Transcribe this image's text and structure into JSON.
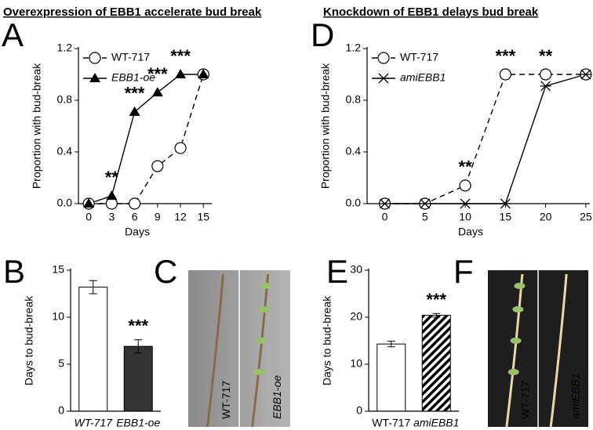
{
  "chart_data": [
    {
      "type": "line",
      "panel": "A",
      "title": "Overexpression of EBB1 accelerate bud break",
      "x_label": "Days",
      "y_label": "Proportion with bud-break",
      "x": [
        0,
        3,
        6,
        9,
        12,
        15
      ],
      "xlim": [
        -1.35,
        16.1
      ],
      "xticks": [
        0,
        3,
        6,
        9,
        12,
        15
      ],
      "ylim": [
        0,
        1.2
      ],
      "yticks": [
        {
          "value": 0,
          "label": "0.0"
        },
        {
          "value": 0.4,
          "label": "0.4"
        },
        {
          "value": 0.8,
          "label": "0.8"
        },
        {
          "value": 1.2,
          "label": "1.2"
        }
      ],
      "legend": "upper left",
      "series": [
        {
          "name": "WT-717",
          "color": "#000000",
          "dashed": true,
          "marker": "circle",
          "values": [
            0,
            0,
            0,
            0.29,
            0.43,
            1.0
          ]
        },
        {
          "name": "EBB1-oe",
          "color": "#000000",
          "dashed": false,
          "marker": "triangle",
          "values": [
            0,
            0.06,
            0.71,
            0.86,
            1.0,
            1.0
          ]
        }
      ],
      "significance": [
        null,
        "**",
        "***",
        "***",
        "***",
        null
      ]
    },
    {
      "type": "line",
      "panel": "D",
      "title": "Knockdown of EBB1 delays bud break",
      "x_label": "Days",
      "y_label": "Proportion with bud-break",
      "x": [
        0,
        5,
        10,
        15,
        20,
        25
      ],
      "xlim": [
        -2.2,
        25.5
      ],
      "xticks": [
        0,
        5,
        10,
        15,
        20,
        25
      ],
      "ylim": [
        0,
        1.2
      ],
      "yticks": [
        {
          "value": 0,
          "label": "0.0"
        },
        {
          "value": 0.4,
          "label": "0.4"
        },
        {
          "value": 0.8,
          "label": "0.8"
        },
        {
          "value": 1.2,
          "label": "1.2"
        }
      ],
      "legend": "upper left",
      "series": [
        {
          "name": "WT-717",
          "color": "#000000",
          "dashed": true,
          "marker": "circle",
          "values": [
            0,
            0,
            0.14,
            1.0,
            1.0,
            1.0
          ]
        },
        {
          "name": "amiEBB1",
          "color": "#000000",
          "dashed": false,
          "marker": "x",
          "values": [
            0,
            0,
            0,
            0,
            0.91,
            1.0
          ]
        }
      ],
      "significance": [
        null,
        null,
        "**",
        "***",
        "**",
        null
      ]
    },
    {
      "type": "bar",
      "panel": "B",
      "y_label": "Days to bud-break",
      "categories": [
        "WT-717",
        "EBB1-oe"
      ],
      "values": [
        13.2,
        6.9
      ],
      "errors": [
        0.7,
        0.7
      ],
      "colors": [
        "#ffffff",
        "#333333"
      ],
      "hatch": [
        false,
        false
      ],
      "ylim": [
        0,
        15
      ],
      "yticks": [
        0,
        5,
        10,
        15
      ],
      "significance": [
        null,
        "***"
      ]
    },
    {
      "type": "bar",
      "panel": "E",
      "y_label": "Days to bud-break",
      "categories": [
        "WT-717",
        "amiEBB1"
      ],
      "values": [
        14.3,
        20.4
      ],
      "errors": [
        0.6,
        0.4
      ],
      "colors": [
        "#ffffff",
        "#ffffff"
      ],
      "hatch": [
        false,
        true
      ],
      "ylim": [
        0,
        30
      ],
      "yticks": [
        0,
        10,
        20,
        30
      ],
      "significance": [
        null,
        "***"
      ]
    }
  ],
  "photos": [
    {
      "panel": "C",
      "labels": [
        "WT-717",
        "EBB1-oe"
      ]
    },
    {
      "panel": "F",
      "labels": [
        "WT-717",
        "amiEBB1"
      ]
    }
  ]
}
